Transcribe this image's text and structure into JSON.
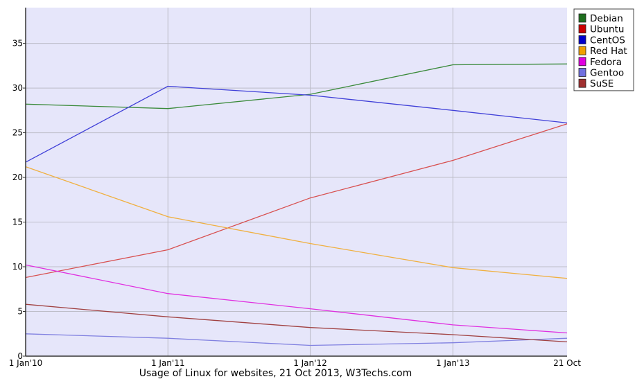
{
  "chart_data": {
    "type": "line",
    "caption": "Usage of Linux for websites, 21 Oct 2013, W3Techs.com",
    "x_labels": [
      "1 Jan'10",
      "1 Jan'11",
      "1 Jan'12",
      "1 Jan'13",
      "21 Oct"
    ],
    "x": [
      "2010-01-01",
      "2011-01-01",
      "2012-01-01",
      "2013-01-01",
      "2013-10-21"
    ],
    "ylim": [
      0,
      39
    ],
    "y_ticks": [
      0,
      5,
      10,
      15,
      20,
      25,
      30,
      35
    ],
    "grid": true,
    "background_color": "#e6e6fa",
    "legend_position": "top-right",
    "series": [
      {
        "name": "Debian",
        "color": "#3a8a3a",
        "swatch": "#1e6e1e",
        "values": [
          28.2,
          27.7,
          29.3,
          32.6,
          32.7
        ]
      },
      {
        "name": "Ubuntu",
        "color": "#d85050",
        "swatch": "#cc0000",
        "values": [
          8.8,
          11.9,
          17.7,
          21.9,
          26.0
        ]
      },
      {
        "name": "CentOS",
        "color": "#4040d8",
        "swatch": "#0000cc",
        "values": [
          21.7,
          30.2,
          29.2,
          27.5,
          26.1
        ]
      },
      {
        "name": "Red Hat",
        "color": "#f0b040",
        "swatch": "#f0a000",
        "values": [
          21.2,
          15.6,
          12.6,
          9.9,
          8.7
        ]
      },
      {
        "name": "Fedora",
        "color": "#e030e0",
        "swatch": "#e000e0",
        "values": [
          10.2,
          7.0,
          5.3,
          3.5,
          2.6
        ]
      },
      {
        "name": "Gentoo",
        "color": "#8080e0",
        "swatch": "#7070e0",
        "values": [
          2.5,
          2.0,
          1.2,
          1.5,
          2.0
        ]
      },
      {
        "name": "SuSE",
        "color": "#a04040",
        "swatch": "#a03030",
        "values": [
          5.8,
          4.4,
          3.2,
          2.4,
          1.6
        ]
      }
    ]
  }
}
